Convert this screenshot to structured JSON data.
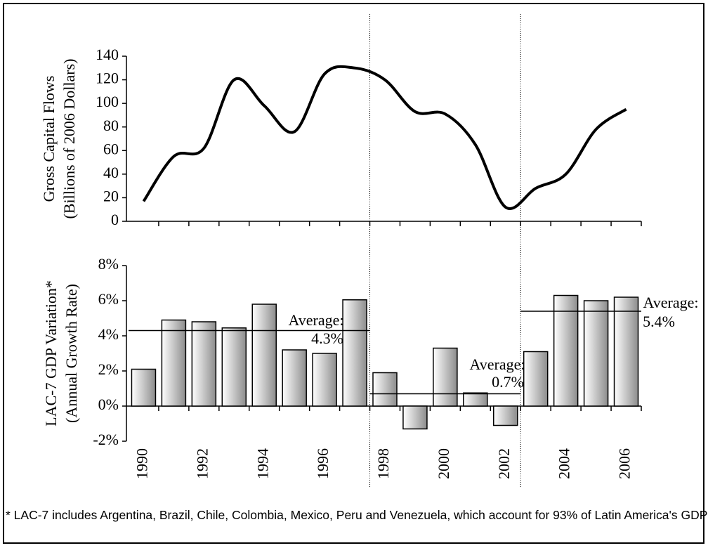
{
  "chart_data": [
    {
      "type": "line",
      "y_label": [
        "Gross Capital Flows",
        "(Billions of 2006 Dollars)"
      ],
      "values": [
        17,
        55,
        62,
        120,
        98,
        76,
        125,
        130,
        120,
        93,
        91,
        65,
        12,
        28,
        40,
        78,
        95
      ],
      "color": "#000000",
      "ylim": [
        0,
        140
      ],
      "yticks": [
        0,
        20,
        40,
        60,
        80,
        100,
        120,
        140
      ]
    },
    {
      "type": "bar",
      "y_label": [
        "LAC-7 GDP Variation*",
        "(Annual Growth Rate)"
      ],
      "categories": [
        "1990",
        null,
        "1992",
        null,
        "1994",
        null,
        "1996",
        null,
        "1998",
        null,
        "2000",
        null,
        "2002",
        null,
        "2004",
        null,
        "2006"
      ],
      "values": [
        2.1,
        4.9,
        4.8,
        4.45,
        5.8,
        3.2,
        3.0,
        6.05,
        1.9,
        -1.3,
        3.3,
        0.75,
        -1.1,
        3.1,
        6.3,
        6.0,
        6.2
      ],
      "color": "#8c8c8c",
      "ylim": [
        -2,
        8
      ],
      "yticks": [
        {
          "value": -2,
          "label": "-2%"
        },
        {
          "value": 0,
          "label": "0%"
        },
        {
          "value": 2,
          "label": "2%"
        },
        {
          "value": 4,
          "label": "4%"
        },
        {
          "value": 6,
          "label": "6%"
        },
        {
          "value": 8,
          "label": "8%"
        }
      ],
      "averages": [
        {
          "text": "Average:",
          "value": 4.3,
          "label": "4.3%"
        },
        {
          "text": "Average:",
          "value": 0.7,
          "label": "0.7%"
        },
        {
          "text": "Average:",
          "value": 5.4,
          "label": "5.4%"
        }
      ]
    }
  ],
  "footnote": "* LAC-7 includes Argentina, Brazil, Chile, Colombia, Mexico, Peru and Venezuela, which account for 93% of Latin America's GDP"
}
